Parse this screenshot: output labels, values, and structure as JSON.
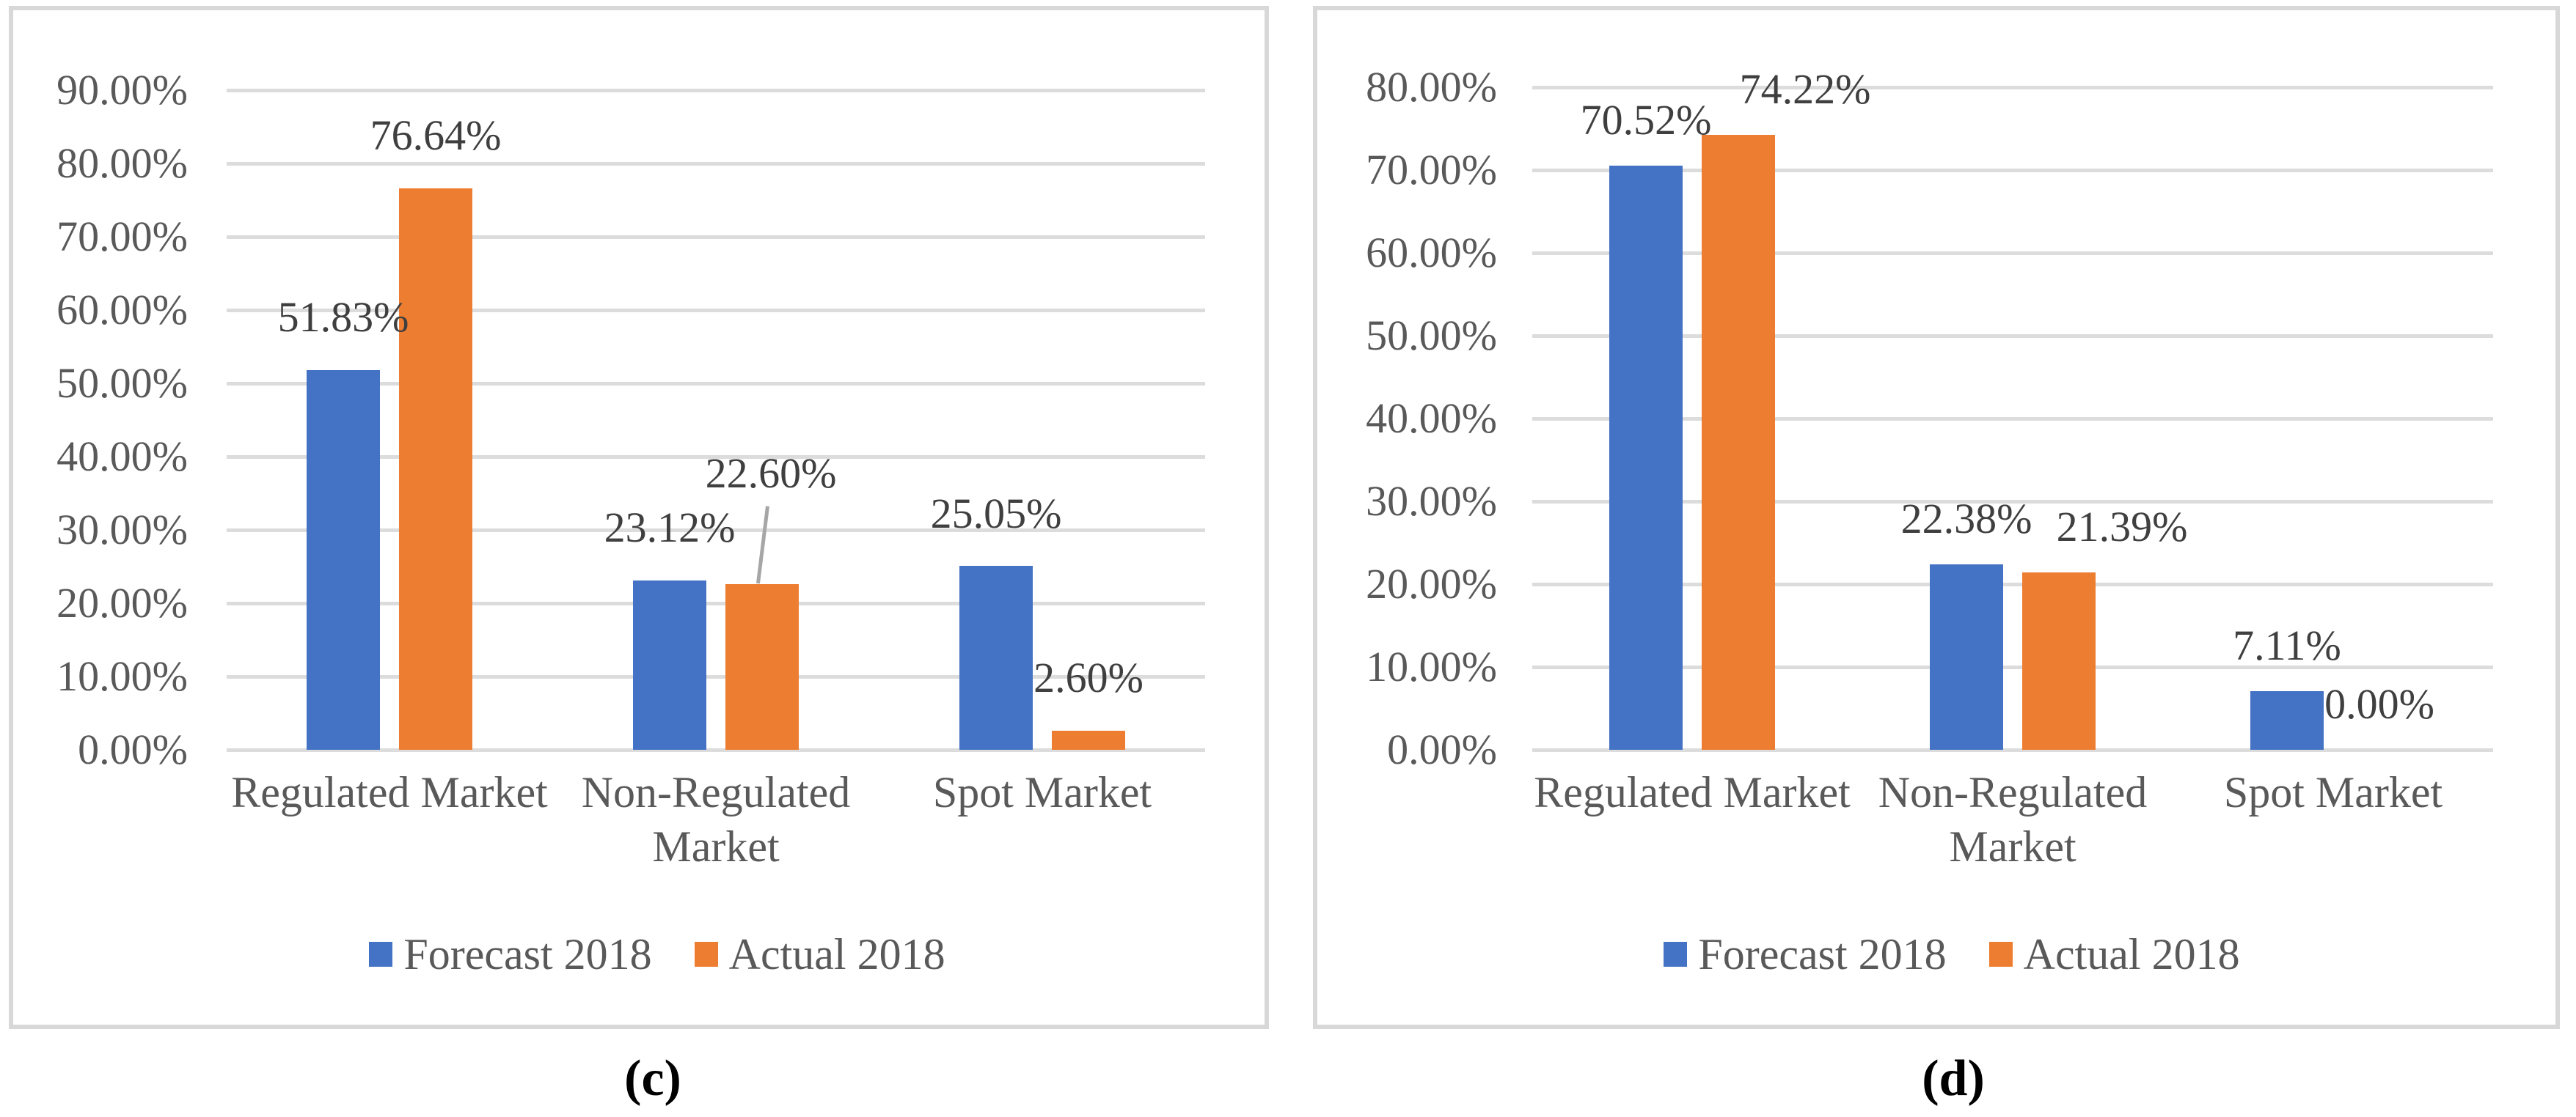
{
  "colors": {
    "forecast": "#4472C4",
    "actual": "#ED7D31",
    "gridline": "#DCDCDC",
    "panel_border": "#D8D8D8",
    "axis_text": "#595959",
    "data_label_text": "#3F3F3F",
    "leader_line": "#A6A6A6",
    "caption_text": "#000000"
  },
  "legend": {
    "items": [
      {
        "label": "Forecast 2018",
        "color_key": "forecast"
      },
      {
        "label": "Actual 2018",
        "color_key": "actual"
      }
    ]
  },
  "chart_data": [
    {
      "type": "bar",
      "panel_caption": "(c)",
      "categories": [
        "Regulated Market",
        "Non-Regulated Market",
        "Spot Market"
      ],
      "series": [
        {
          "name": "Forecast 2018",
          "color_key": "forecast",
          "values": [
            51.83,
            23.12,
            25.05
          ],
          "labels": [
            "51.83%",
            "23.12%",
            "25.05%"
          ]
        },
        {
          "name": "Actual 2018",
          "color_key": "actual",
          "values": [
            76.64,
            22.6,
            2.6
          ],
          "labels": [
            "76.64%",
            "22.60%",
            "2.60%"
          ]
        }
      ],
      "ylim": [
        0,
        90
      ],
      "ytick_step": 10,
      "ytick_labels": [
        "0.00%",
        "10.00%",
        "20.00%",
        "30.00%",
        "40.00%",
        "50.00%",
        "60.00%",
        "70.00%",
        "80.00%",
        "90.00%"
      ],
      "grid": true,
      "legend_position": "bottom"
    },
    {
      "type": "bar",
      "panel_caption": "(d)",
      "categories": [
        "Regulated Market",
        "Non-Regulated Market",
        "Spot Market"
      ],
      "series": [
        {
          "name": "Forecast 2018",
          "color_key": "forecast",
          "values": [
            70.52,
            22.38,
            7.11
          ],
          "labels": [
            "70.52%",
            "22.38%",
            "7.11%"
          ]
        },
        {
          "name": "Actual 2018",
          "color_key": "actual",
          "values": [
            74.22,
            21.39,
            0.0
          ],
          "labels": [
            "74.22%",
            "21.39%",
            "0.00%"
          ]
        }
      ],
      "ylim": [
        0,
        80
      ],
      "ytick_step": 10,
      "ytick_labels": [
        "0.00%",
        "10.00%",
        "20.00%",
        "30.00%",
        "40.00%",
        "50.00%",
        "60.00%",
        "70.00%",
        "80.00%"
      ],
      "grid": true,
      "legend_position": "bottom"
    }
  ]
}
